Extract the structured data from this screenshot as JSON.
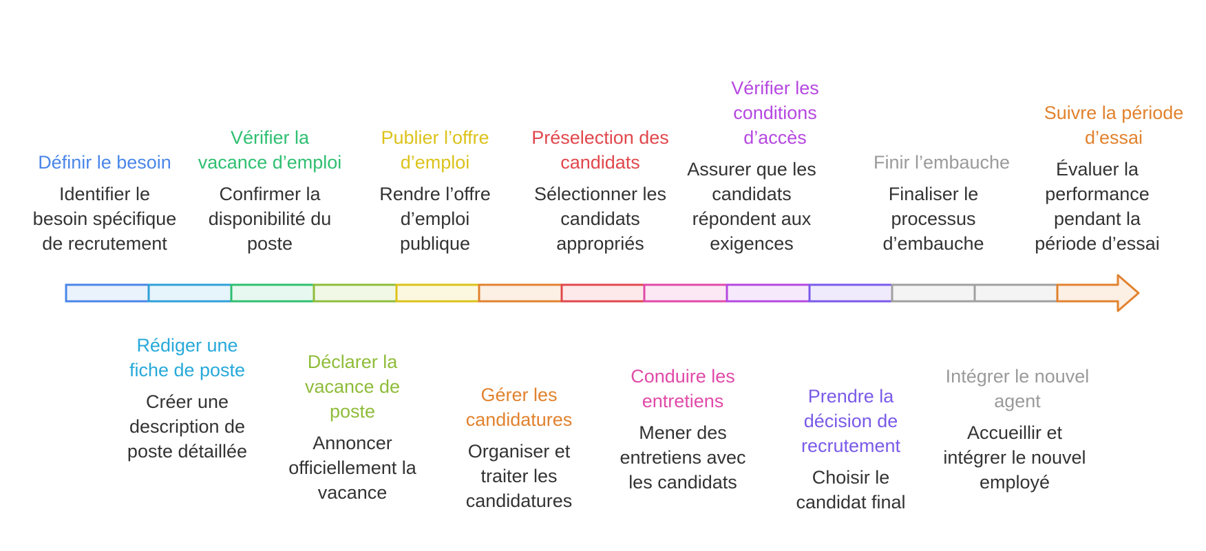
{
  "colors": {
    "blue": "#4a86e8",
    "cyan": "#27a9d9",
    "green": "#2fbf71",
    "lime": "#8fbc3a",
    "yellow": "#dcc21b",
    "orange": "#e1822e",
    "red": "#e0474c",
    "pink": "#e04aa8",
    "purple": "#b548e0",
    "violet": "#7a5ae8",
    "gray": "#9a9a9a"
  },
  "segments": [
    {
      "stroke": "#4a86e8",
      "fill": "#eaf2fc"
    },
    {
      "stroke": "#2f9fd8",
      "fill": "#e6f4fb"
    },
    {
      "stroke": "#2fbf71",
      "fill": "#e6f8ef"
    },
    {
      "stroke": "#8fbc3a",
      "fill": "#f1f8e6"
    },
    {
      "stroke": "#dcc21b",
      "fill": "#fcf8df"
    },
    {
      "stroke": "#e1822e",
      "fill": "#fcefe4"
    },
    {
      "stroke": "#e0474c",
      "fill": "#fde9ea"
    },
    {
      "stroke": "#e04aa8",
      "fill": "#fce8f4"
    },
    {
      "stroke": "#b548e0",
      "fill": "#f7e9fc"
    },
    {
      "stroke": "#7a5ae8",
      "fill": "#efebfc"
    },
    {
      "stroke": "#a0a0a0",
      "fill": "#f4f4f4"
    },
    {
      "stroke": "#a0a0a0",
      "fill": "#f4f4f4"
    }
  ],
  "arrow": {
    "stroke": "#e1822e",
    "fill": "#fcefe4"
  },
  "steps": [
    {
      "title": "Définir le besoin",
      "description": "Identifier le besoin spécifique de recrutement",
      "color": "#4a86e8"
    },
    {
      "title": "Rédiger une fiche de poste",
      "description": "Créer une description de poste détaillée",
      "color": "#27a9d9"
    },
    {
      "title": "Vérifier la vacance d’emploi",
      "description": "Confirmer la disponibilité du poste",
      "color": "#2fbf71"
    },
    {
      "title": "Déclarer la vacance de poste",
      "description": "Annoncer officiellement la vacance",
      "color": "#8fbc3a"
    },
    {
      "title": "Publier l’offre d’emploi",
      "description": "Rendre l’offre d’emploi publique",
      "color": "#dcc21b"
    },
    {
      "title": "Gérer les candidatures",
      "description": "Organiser et traiter les candidatures",
      "color": "#e1822e"
    },
    {
      "title": "Préselection des candidats",
      "description": "Sélectionner les candidats appropriés",
      "color": "#e0474c"
    },
    {
      "title": "Conduire les entretiens",
      "description": "Mener des entretiens avec les candidats",
      "color": "#e04aa8"
    },
    {
      "title": "Vérifier les conditions d’accès",
      "description": "Assurer que les candidats répondent aux exigences",
      "color": "#b548e0"
    },
    {
      "title": "Prendre la décision de recrutement",
      "description": "Choisir le candidat final",
      "color": "#7a5ae8"
    },
    {
      "title": "Finir l’embauche",
      "description": "Finaliser le processus d’embauche",
      "color": "#9a9a9a"
    },
    {
      "title": "Intégrer le nouvel agent",
      "description": "Accueillir et intégrer le nouvel employé",
      "color": "#9a9a9a"
    },
    {
      "title": "Suivre la période d’essai",
      "description": "Évaluer la performance pendant la période d’essai",
      "color": "#e1822e"
    }
  ]
}
